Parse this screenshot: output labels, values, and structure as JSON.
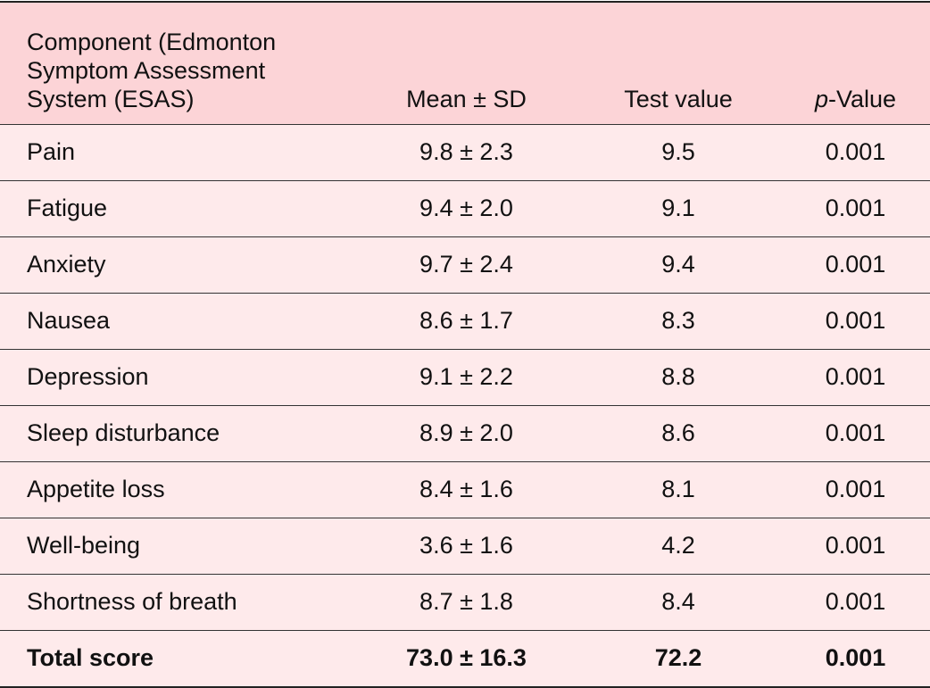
{
  "table": {
    "header": [
      "Component (Edmonton Symptom Assessment System (ESAS)",
      "Mean ± SD",
      "Test value",
      "p-Value"
    ],
    "rows": [
      [
        "Pain",
        "9.8 ± 2.3",
        "9.5",
        "0.001"
      ],
      [
        "Fatigue",
        "9.4 ± 2.0",
        "9.1",
        "0.001"
      ],
      [
        "Anxiety",
        "9.7 ± 2.4",
        "9.4",
        "0.001"
      ],
      [
        "Nausea",
        "8.6 ± 1.7",
        "8.3",
        "0.001"
      ],
      [
        "Depression",
        "9.1 ± 2.2",
        "8.8",
        "0.001"
      ],
      [
        "Sleep disturbance",
        "8.9 ± 2.0",
        "8.6",
        "0.001"
      ],
      [
        "Appetite loss",
        "8.4 ± 1.6",
        "8.1",
        "0.001"
      ],
      [
        "Well-being",
        "3.6 ± 1.6",
        "4.2",
        "0.001"
      ],
      [
        "Shortness of breath",
        "8.7 ± 1.8",
        "8.4",
        "0.001"
      ],
      [
        "Total score",
        "73.0 ± 16.3",
        "72.2",
        "0.001"
      ]
    ]
  }
}
